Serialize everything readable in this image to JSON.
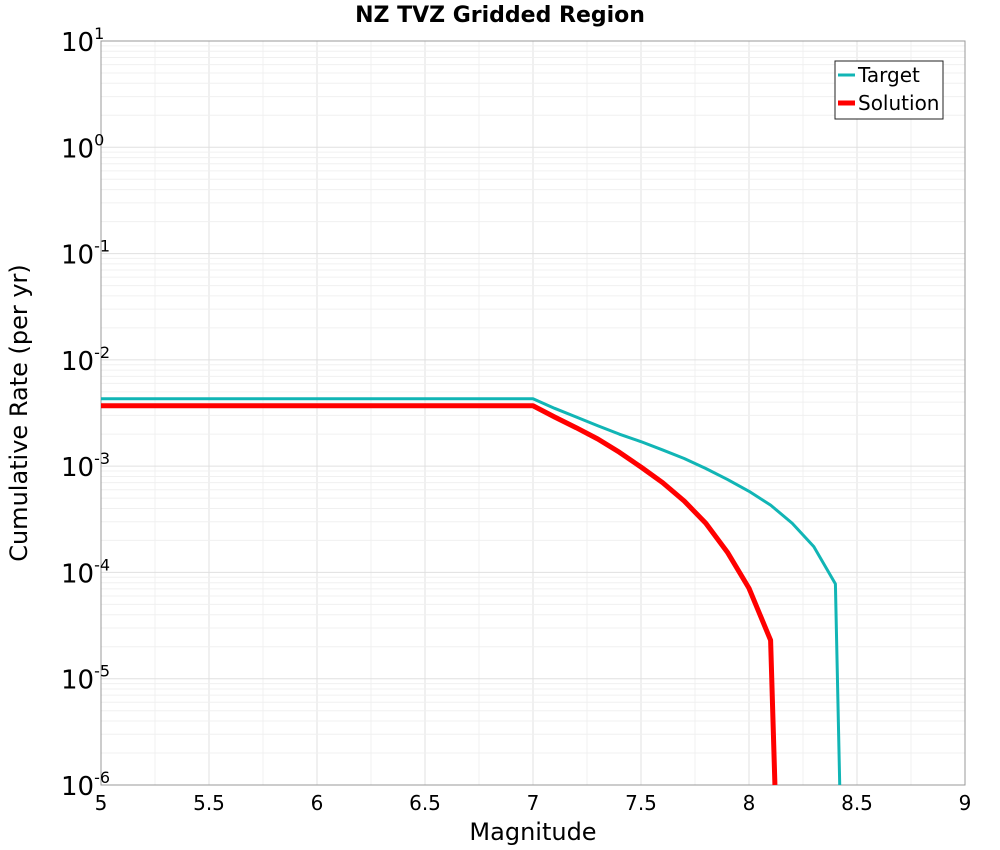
{
  "chart_data": {
    "type": "line",
    "title": "NZ TVZ Gridded Region",
    "xlabel": "Magnitude",
    "ylabel": "Cumulative Rate (per yr)",
    "xlim": [
      5,
      9
    ],
    "ylim": [
      1e-06,
      10
    ],
    "yscale": "log",
    "grid": true,
    "legend": "top-right",
    "xticks": [
      "5",
      "5.5",
      "6",
      "6.5",
      "7",
      "7.5",
      "8",
      "8.5",
      "9"
    ],
    "yticks": [
      {
        "value": 10,
        "base": "10",
        "exp": "1"
      },
      {
        "value": 1,
        "base": "10",
        "exp": "0"
      },
      {
        "value": 0.1,
        "base": "10",
        "exp": "-1"
      },
      {
        "value": 0.01,
        "base": "10",
        "exp": "-2"
      },
      {
        "value": 0.001,
        "base": "10",
        "exp": "-3"
      },
      {
        "value": 0.0001,
        "base": "10",
        "exp": "-4"
      },
      {
        "value": 1e-05,
        "base": "10",
        "exp": "-5"
      },
      {
        "value": 1e-06,
        "base": "10",
        "exp": "-6"
      }
    ],
    "series": [
      {
        "name": "Target",
        "color": "#11b5b5",
        "line_width": "thin",
        "x": [
          5.0,
          7.0,
          7.1,
          7.2,
          7.3,
          7.4,
          7.5,
          7.6,
          7.7,
          7.8,
          7.9,
          8.0,
          8.1,
          8.2,
          8.3,
          8.4,
          8.42
        ],
        "y": [
          0.0043,
          0.0043,
          0.0035,
          0.0029,
          0.0024,
          0.002,
          0.0017,
          0.00142,
          0.00118,
          0.00095,
          0.00075,
          0.00058,
          0.00043,
          0.00029,
          0.000175,
          7.8e-05,
          1e-06
        ]
      },
      {
        "name": "Solution",
        "color": "#ff0000",
        "line_width": "thick",
        "x": [
          5.0,
          7.0,
          7.1,
          7.2,
          7.3,
          7.4,
          7.5,
          7.6,
          7.7,
          7.8,
          7.9,
          8.0,
          8.1,
          8.12
        ],
        "y": [
          0.0037,
          0.0037,
          0.0029,
          0.0023,
          0.0018,
          0.00135,
          0.00098,
          0.0007,
          0.00047,
          0.00029,
          0.000155,
          7.1e-05,
          2.3e-05,
          1e-06
        ]
      }
    ]
  }
}
